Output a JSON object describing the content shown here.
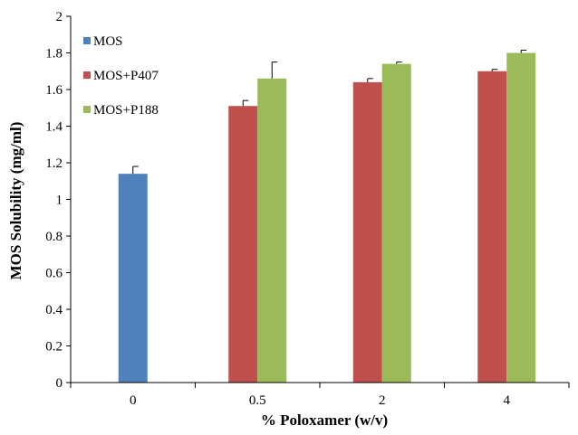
{
  "chart_data": {
    "type": "bar",
    "title": "",
    "xlabel": "% Poloxamer (w/v)",
    "ylabel": "MOS Solubility (mg/ml)",
    "ylim": [
      0,
      2
    ],
    "yticks": [
      "0",
      "0.2",
      "0.4",
      "0.6",
      "0.8",
      "1",
      "1.2",
      "1.4",
      "1.6",
      "1.8",
      "2"
    ],
    "categories": [
      "0",
      "0.5",
      "2",
      "4"
    ],
    "grid": false,
    "legend_position": "top-left",
    "series": [
      {
        "name": "MOS",
        "color": "#4F81BD",
        "values": [
          1.14,
          null,
          null,
          null
        ],
        "errors": [
          0.04,
          null,
          null,
          null
        ]
      },
      {
        "name": "MOS+P407",
        "color": "#C0504D",
        "values": [
          null,
          1.51,
          1.64,
          1.7
        ],
        "errors": [
          null,
          0.03,
          0.02,
          0.01
        ]
      },
      {
        "name": "MOS+P188",
        "color": "#9BBB59",
        "values": [
          null,
          1.66,
          1.74,
          1.8
        ],
        "errors": [
          null,
          0.09,
          0.01,
          0.015
        ]
      }
    ]
  }
}
